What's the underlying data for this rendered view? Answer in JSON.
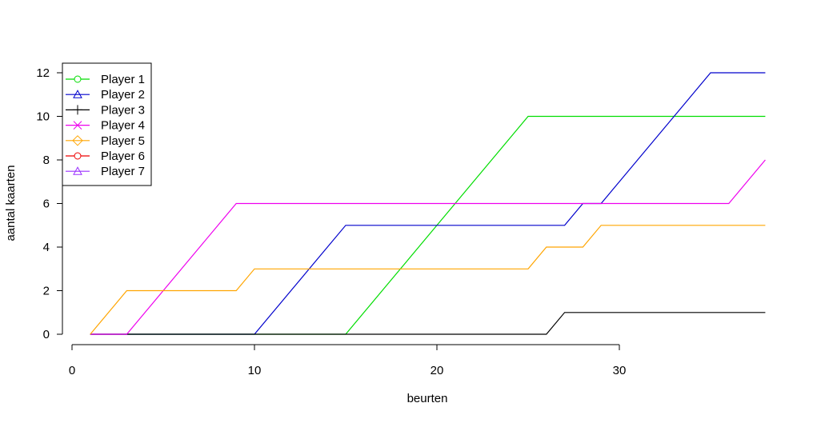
{
  "chart_data": {
    "type": "line",
    "title": "",
    "xlabel": "beurten",
    "ylabel": "aantal kaarten",
    "xlim": [
      0,
      38
    ],
    "ylim": [
      0,
      12
    ],
    "x_ticks": [
      0,
      10,
      20,
      30
    ],
    "y_ticks": [
      0,
      2,
      4,
      6,
      8,
      10,
      12
    ],
    "grid": false,
    "legend_position": "topleft",
    "x": [
      1,
      2,
      3,
      4,
      5,
      6,
      7,
      8,
      9,
      10,
      11,
      12,
      13,
      14,
      15,
      16,
      17,
      18,
      19,
      20,
      21,
      22,
      23,
      24,
      25,
      26,
      27,
      28,
      29,
      30,
      31,
      32,
      33,
      34,
      35,
      36,
      37,
      38
    ],
    "series": [
      {
        "name": "Player 1",
        "color": "#00dd00",
        "marker": "circle",
        "values": [
          0,
          0,
          0,
          0,
          0,
          0,
          0,
          0,
          0,
          0,
          0,
          0,
          0,
          0,
          0,
          1,
          2,
          3,
          4,
          5,
          6,
          7,
          8,
          9,
          10,
          10,
          10,
          10,
          10,
          10,
          10,
          10,
          10,
          10,
          10,
          10,
          10,
          10
        ]
      },
      {
        "name": "Player 2",
        "color": "#0000cc",
        "marker": "triangle",
        "values": [
          0,
          0,
          0,
          0,
          0,
          0,
          0,
          0,
          0,
          0,
          1,
          2,
          3,
          4,
          5,
          5,
          5,
          5,
          5,
          5,
          5,
          5,
          5,
          5,
          5,
          5,
          5,
          6,
          6,
          7,
          8,
          9,
          10,
          11,
          12,
          12,
          12,
          12
        ]
      },
      {
        "name": "Player 3",
        "color": "#000000",
        "marker": "plus",
        "values": [
          0,
          0,
          0,
          0,
          0,
          0,
          0,
          0,
          0,
          0,
          0,
          0,
          0,
          0,
          0,
          0,
          0,
          0,
          0,
          0,
          0,
          0,
          0,
          0,
          0,
          0,
          1,
          1,
          1,
          1,
          1,
          1,
          1,
          1,
          1,
          1,
          1,
          1
        ]
      },
      {
        "name": "Player 4",
        "color": "#ee00ee",
        "marker": "cross",
        "values": [
          0,
          0,
          0,
          1,
          2,
          3,
          4,
          5,
          6,
          6,
          6,
          6,
          6,
          6,
          6,
          6,
          6,
          6,
          6,
          6,
          6,
          6,
          6,
          6,
          6,
          6,
          6,
          6,
          6,
          6,
          6,
          6,
          6,
          6,
          6,
          6,
          7,
          8
        ]
      },
      {
        "name": "Player 5",
        "color": "#ffa500",
        "marker": "diamond",
        "values": [
          0,
          1,
          2,
          2,
          2,
          2,
          2,
          2,
          2,
          3,
          3,
          3,
          3,
          3,
          3,
          3,
          3,
          3,
          3,
          3,
          3,
          3,
          3,
          3,
          3,
          4,
          4,
          4,
          5,
          5,
          5,
          5,
          5,
          5,
          5,
          5,
          5,
          5
        ]
      },
      {
        "name": "Player 6",
        "color": "#ee0000",
        "marker": "circle-dot",
        "values": []
      },
      {
        "name": "Player 7",
        "color": "#9b30ff",
        "marker": "triangle",
        "values": []
      }
    ]
  },
  "axes": {
    "x_title": "beurten",
    "y_title": "aantal kaarten",
    "x_tick_labels": [
      "0",
      "10",
      "20",
      "30"
    ],
    "y_tick_labels": [
      "0",
      "2",
      "4",
      "6",
      "8",
      "10",
      "12"
    ]
  },
  "legend": {
    "items": [
      {
        "label": "Player 1",
        "color": "#00dd00",
        "marker": "circle"
      },
      {
        "label": "Player 2",
        "color": "#0000cc",
        "marker": "triangle"
      },
      {
        "label": "Player 3",
        "color": "#000000",
        "marker": "plus"
      },
      {
        "label": "Player 4",
        "color": "#ee00ee",
        "marker": "cross"
      },
      {
        "label": "Player 5",
        "color": "#ffa500",
        "marker": "diamond"
      },
      {
        "label": "Player 6",
        "color": "#ee0000",
        "marker": "circle-dot"
      },
      {
        "label": "Player 7",
        "color": "#9b30ff",
        "marker": "triangle"
      }
    ]
  }
}
